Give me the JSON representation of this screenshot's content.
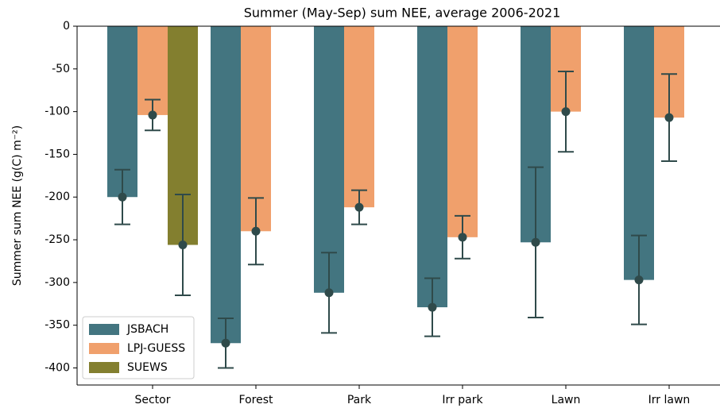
{
  "chart_data": {
    "type": "bar",
    "title": "Summer (May-Sep) sum NEE, average 2006-2021",
    "y_label": "Summer sum NEE (g(C) m⁻²)",
    "categories": [
      "Sector",
      "Forest",
      "Park",
      "Irr park",
      "Lawn",
      "Irr lawn"
    ],
    "series": [
      {
        "name": "JSBACH",
        "color": "#437580",
        "values": [
          -200,
          -371,
          -312,
          -329,
          -253,
          -297
        ],
        "errors": [
          32,
          29,
          47,
          34,
          88,
          52
        ]
      },
      {
        "name": "LPJ-GUESS",
        "color": "#f0a06c",
        "values": [
          -104,
          -240,
          -212,
          -247,
          -100,
          -107
        ],
        "errors": [
          18,
          39,
          20,
          25,
          47,
          51
        ]
      },
      {
        "name": "SUEWS",
        "color": "#837f2f",
        "values": [
          -256,
          null,
          null,
          null,
          null,
          null
        ],
        "errors": [
          59,
          null,
          null,
          null,
          null,
          null
        ]
      }
    ],
    "error_color": "#2f4a4a",
    "ylim": [
      -420,
      0
    ],
    "yticks": [
      0,
      -50,
      -100,
      -150,
      -200,
      -250,
      -300,
      -350,
      -400
    ],
    "legend": "lower left"
  }
}
